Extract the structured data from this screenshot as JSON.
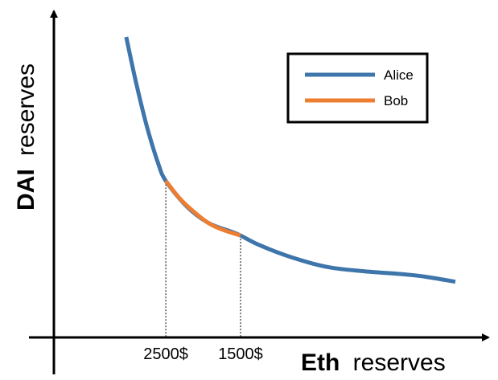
{
  "chart_data": {
    "type": "line",
    "title": "",
    "xlabel_bold": "Eth",
    "xlabel_rest": "reserves",
    "ylabel_bold": "DAI",
    "ylabel_rest": "reserves",
    "xlim": [
      0,
      100
    ],
    "ylim": [
      0,
      100
    ],
    "grid": false,
    "legend_position": "top-right",
    "series": [
      {
        "name": "Alice",
        "color": "#3E75AA",
        "x": [
          9.3,
          12,
          15,
          18,
          20.2,
          26,
          32,
          38,
          40.8,
          46,
          55,
          65,
          75,
          85,
          92,
          100
        ],
        "y": [
          98.5,
          82,
          66,
          53,
          46.3,
          37,
          31,
          28,
          26.5,
          23,
          18.5,
          15,
          13.5,
          12.5,
          11.5,
          9.7
        ]
      },
      {
        "name": "Bob",
        "color": "#ED7D31",
        "x": [
          20.2,
          24,
          28,
          32,
          36,
          40.8
        ],
        "y": [
          46.3,
          40,
          35,
          31,
          28.5,
          26.5
        ]
      }
    ],
    "markers": [
      {
        "x": 20.2,
        "y": 46.3,
        "label": "2500$"
      },
      {
        "x": 40.8,
        "y": 26.5,
        "label": "1500$"
      }
    ]
  }
}
